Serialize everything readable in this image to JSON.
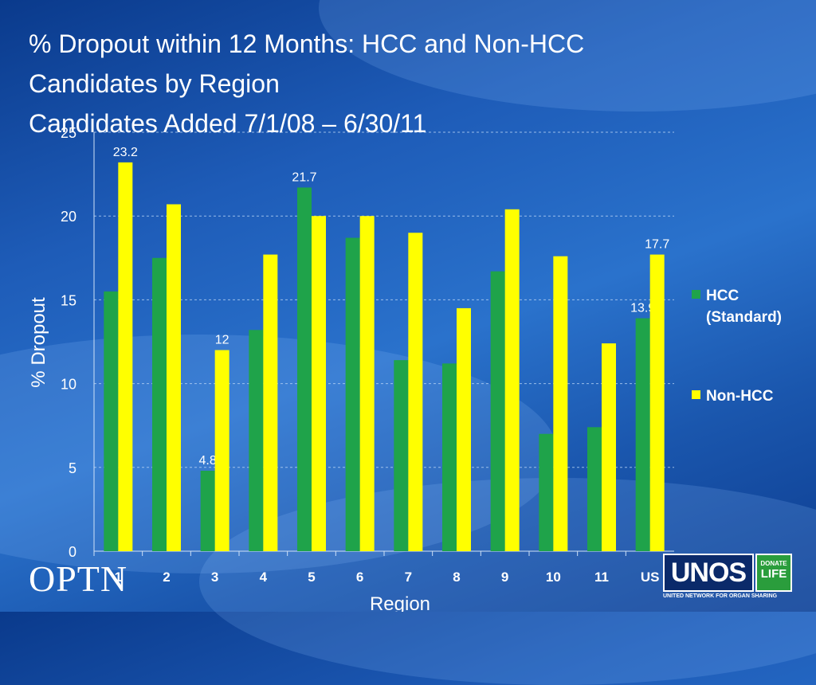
{
  "title_lines": [
    "% Dropout within 12 Months: HCC and Non-HCC",
    "Candidates by Region",
    "Candidates Added 7/1/08 – 6/30/11"
  ],
  "logos": {
    "optn": "OPTN",
    "unos": "UNOS",
    "donate": "DONATE",
    "life": "LIFE",
    "unos_subtitle": "UNITED NETWORK FOR ORGAN SHARING"
  },
  "chart_data": {
    "type": "bar",
    "xlabel": "Region",
    "ylabel": "% Dropout",
    "ylim": [
      0,
      25
    ],
    "yticks": [
      0,
      5,
      10,
      15,
      20,
      25
    ],
    "grid": true,
    "legend_position": "right",
    "categories": [
      "1",
      "2",
      "3",
      "4",
      "5",
      "6",
      "7",
      "8",
      "9",
      "10",
      "11",
      "US"
    ],
    "series": [
      {
        "name": "HCC (Standard)",
        "color": "#1fa34a",
        "values": [
          15.5,
          17.5,
          4.8,
          13.2,
          21.7,
          18.7,
          11.4,
          11.2,
          16.7,
          7.0,
          7.4,
          13.9
        ],
        "labels": {
          "2": "4.8",
          "4": "21.7",
          "11": "13.9"
        }
      },
      {
        "name": "Non-HCC",
        "color": "#ffff00",
        "values": [
          23.2,
          20.7,
          12.0,
          17.7,
          20.0,
          20.0,
          19.0,
          14.5,
          20.4,
          17.6,
          12.4,
          17.7
        ],
        "labels": {
          "0": "23.2",
          "2": "12",
          "11": "17.7"
        }
      }
    ]
  }
}
